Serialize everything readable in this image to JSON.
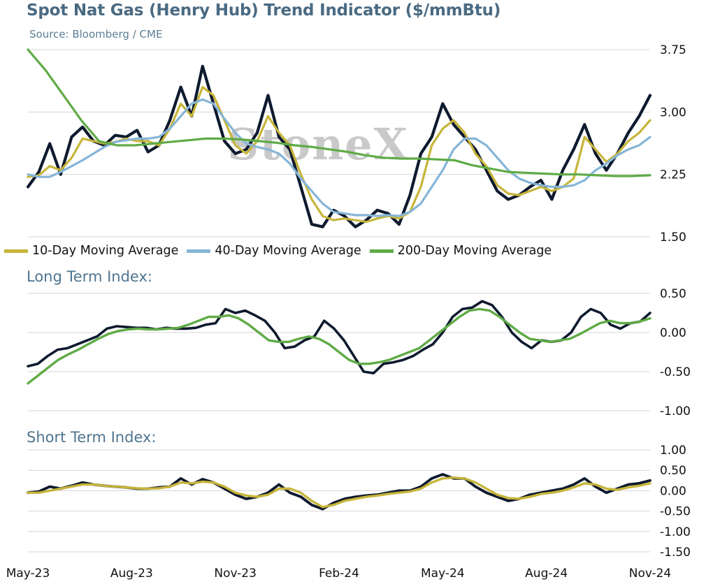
{
  "header": {
    "title": "Spot Nat Gas (Henry Hub) Trend Indicator ($/mmBtu)",
    "subtitle": "Source: Bloomberg / CME"
  },
  "watermark": "StoneX",
  "colors": {
    "price": "#0e1a2e",
    "ma10": "#c7b53a",
    "ma40": "#86b5d8",
    "ma200": "#5fab46",
    "long_index": "#0e1a2e",
    "long_index_smooth": "#5fab46",
    "short_index": "#0e1a2e",
    "short_index_smooth": "#c7b53a",
    "grid": "#d4d4d4"
  },
  "legend": {
    "items": [
      {
        "label": "10-Day Moving Average",
        "color": "#c7b53a"
      },
      {
        "label": "40-Day Moving Average",
        "color": "#86b5d8"
      },
      {
        "label": "200-Day Moving Average",
        "color": "#5fab46"
      }
    ]
  },
  "panels": {
    "long_term_title": "Long Term Index:",
    "short_term_title": "Short Term Index:"
  },
  "chart_data": [
    {
      "type": "line",
      "panel": "price",
      "title": "Spot Nat Gas (Henry Hub) Trend Indicator ($/mmBtu)",
      "ylim": [
        1.5,
        3.75
      ],
      "yticks": [
        "3.75",
        "3.00",
        "2.25",
        "1.50"
      ],
      "ytick_values": [
        3.75,
        3.0,
        2.25,
        1.5
      ],
      "x_start": "May-23",
      "x_end": "Nov-24",
      "x_ticks": [
        "May-23",
        "Aug-23",
        "Nov-23",
        "Feb-24",
        "May-24",
        "Aug-24",
        "Nov-24"
      ],
      "series": [
        {
          "key": "price",
          "values": [
            2.1,
            2.28,
            2.62,
            2.25,
            2.7,
            2.82,
            2.65,
            2.6,
            2.72,
            2.7,
            2.78,
            2.52,
            2.6,
            2.9,
            3.3,
            2.95,
            3.55,
            3.1,
            2.65,
            2.5,
            2.55,
            2.75,
            3.2,
            2.7,
            2.55,
            2.1,
            1.65,
            1.62,
            1.82,
            1.75,
            1.62,
            1.7,
            1.82,
            1.78,
            1.65,
            2.0,
            2.5,
            2.7,
            3.1,
            2.85,
            2.7,
            2.55,
            2.3,
            2.05,
            1.95,
            2.0,
            2.1,
            2.18,
            1.95,
            2.3,
            2.55,
            2.85,
            2.5,
            2.3,
            2.5,
            2.75,
            2.95,
            3.2
          ]
        },
        {
          "key": "ma10",
          "label": "10-Day Moving Average",
          "values": [
            2.22,
            2.24,
            2.35,
            2.3,
            2.45,
            2.68,
            2.65,
            2.62,
            2.64,
            2.68,
            2.65,
            2.65,
            2.6,
            2.8,
            3.1,
            2.95,
            3.3,
            3.2,
            2.9,
            2.6,
            2.5,
            2.65,
            2.95,
            2.75,
            2.6,
            2.25,
            1.95,
            1.75,
            1.7,
            1.72,
            1.7,
            1.68,
            1.72,
            1.75,
            1.72,
            1.8,
            2.1,
            2.6,
            2.8,
            2.9,
            2.75,
            2.5,
            2.35,
            2.12,
            2.02,
            2.0,
            2.05,
            2.1,
            2.05,
            2.1,
            2.2,
            2.7,
            2.55,
            2.4,
            2.5,
            2.65,
            2.75,
            2.9
          ]
        },
        {
          "key": "ma40",
          "label": "40-Day Moving Average",
          "values": [
            2.25,
            2.22,
            2.22,
            2.28,
            2.35,
            2.42,
            2.5,
            2.58,
            2.64,
            2.66,
            2.68,
            2.68,
            2.7,
            2.8,
            2.95,
            3.1,
            3.15,
            3.1,
            2.92,
            2.75,
            2.62,
            2.58,
            2.55,
            2.5,
            2.38,
            2.2,
            2.05,
            1.9,
            1.8,
            1.78,
            1.76,
            1.76,
            1.75,
            1.76,
            1.75,
            1.8,
            1.9,
            2.1,
            2.3,
            2.55,
            2.68,
            2.68,
            2.6,
            2.45,
            2.3,
            2.2,
            2.15,
            2.12,
            2.1,
            2.1,
            2.12,
            2.18,
            2.3,
            2.38,
            2.48,
            2.55,
            2.6,
            2.7
          ]
        },
        {
          "key": "ma200",
          "label": "200-Day Moving Average",
          "values": [
            3.75,
            3.5,
            3.2,
            2.9,
            2.65,
            2.6,
            2.6,
            2.62,
            2.64,
            2.66,
            2.68,
            2.68,
            2.67,
            2.65,
            2.63,
            2.6,
            2.58,
            2.55,
            2.52,
            2.48,
            2.45,
            2.44,
            2.44,
            2.43,
            2.42,
            2.36,
            2.32,
            2.28,
            2.27,
            2.26,
            2.25,
            2.25,
            2.24,
            2.23,
            2.23,
            2.24
          ]
        }
      ]
    },
    {
      "type": "line",
      "panel": "long_term",
      "title": "Long Term Index:",
      "ylim": [
        -1.0,
        0.5
      ],
      "yticks": [
        "0.50",
        "0.00",
        "-0.50",
        "-1.00"
      ],
      "ytick_values": [
        0.5,
        0.0,
        -0.5,
        -1.0
      ],
      "series": [
        {
          "key": "long_index",
          "values": [
            -0.43,
            -0.4,
            -0.3,
            -0.22,
            -0.2,
            -0.15,
            -0.1,
            -0.05,
            0.05,
            0.08,
            0.07,
            0.06,
            0.06,
            0.04,
            0.06,
            0.05,
            0.05,
            0.06,
            0.1,
            0.12,
            0.3,
            0.25,
            0.28,
            0.22,
            0.15,
            0.0,
            -0.2,
            -0.18,
            -0.1,
            -0.05,
            0.15,
            0.05,
            -0.1,
            -0.3,
            -0.5,
            -0.52,
            -0.4,
            -0.38,
            -0.35,
            -0.3,
            -0.22,
            -0.15,
            0.0,
            0.2,
            0.3,
            0.32,
            0.4,
            0.35,
            0.2,
            0.0,
            -0.12,
            -0.2,
            -0.1,
            -0.12,
            -0.1,
            0.0,
            0.2,
            0.3,
            0.25,
            0.1,
            0.05,
            0.12,
            0.14,
            0.25
          ]
        },
        {
          "key": "long_index_smooth",
          "values": [
            -0.65,
            -0.55,
            -0.45,
            -0.35,
            -0.28,
            -0.22,
            -0.15,
            -0.08,
            -0.02,
            0.02,
            0.04,
            0.05,
            0.04,
            0.04,
            0.05,
            0.06,
            0.1,
            0.15,
            0.2,
            0.2,
            0.22,
            0.18,
            0.1,
            0.0,
            -0.1,
            -0.12,
            -0.12,
            -0.08,
            -0.05,
            -0.08,
            -0.15,
            -0.25,
            -0.35,
            -0.4,
            -0.4,
            -0.38,
            -0.35,
            -0.3,
            -0.25,
            -0.2,
            -0.1,
            0.0,
            0.1,
            0.2,
            0.28,
            0.3,
            0.28,
            0.2,
            0.1,
            0.0,
            -0.08,
            -0.1,
            -0.12,
            -0.1,
            -0.08,
            -0.02,
            0.05,
            0.12,
            0.15,
            0.12,
            0.12,
            0.14,
            0.18
          ]
        }
      ]
    },
    {
      "type": "line",
      "panel": "short_term",
      "title": "Short Term Index:",
      "ylim": [
        -1.5,
        1.0
      ],
      "yticks": [
        "1.00",
        "0.50",
        "0.00",
        "-0.50",
        "-1.00",
        "-1.50"
      ],
      "ytick_values": [
        1.0,
        0.5,
        0.0,
        -0.5,
        -1.0,
        -1.5
      ],
      "series": [
        {
          "key": "short_index",
          "values": [
            -0.05,
            -0.02,
            0.1,
            0.05,
            0.12,
            0.2,
            0.15,
            0.12,
            0.1,
            0.08,
            0.05,
            0.05,
            0.08,
            0.1,
            0.3,
            0.15,
            0.28,
            0.2,
            0.05,
            -0.1,
            -0.2,
            -0.15,
            -0.05,
            0.15,
            -0.05,
            -0.15,
            -0.35,
            -0.45,
            -0.3,
            -0.2,
            -0.15,
            -0.12,
            -0.1,
            -0.05,
            0.0,
            0.0,
            0.1,
            0.3,
            0.4,
            0.3,
            0.3,
            0.1,
            -0.05,
            -0.15,
            -0.25,
            -0.2,
            -0.1,
            -0.05,
            0.0,
            0.05,
            0.15,
            0.3,
            0.1,
            -0.05,
            0.05,
            0.15,
            0.18,
            0.25
          ]
        },
        {
          "key": "short_index_smooth",
          "values": [
            -0.05,
            -0.05,
            0.0,
            0.05,
            0.1,
            0.15,
            0.15,
            0.12,
            0.1,
            0.08,
            0.06,
            0.05,
            0.06,
            0.1,
            0.2,
            0.18,
            0.22,
            0.2,
            0.1,
            -0.05,
            -0.12,
            -0.15,
            -0.1,
            0.05,
            0.05,
            -0.05,
            -0.25,
            -0.4,
            -0.35,
            -0.25,
            -0.2,
            -0.15,
            -0.12,
            -0.08,
            -0.05,
            -0.02,
            0.05,
            0.2,
            0.3,
            0.32,
            0.3,
            0.2,
            0.05,
            -0.1,
            -0.18,
            -0.2,
            -0.15,
            -0.08,
            -0.05,
            0.0,
            0.08,
            0.18,
            0.15,
            0.05,
            0.02,
            0.08,
            0.12,
            0.18
          ]
        }
      ]
    }
  ]
}
